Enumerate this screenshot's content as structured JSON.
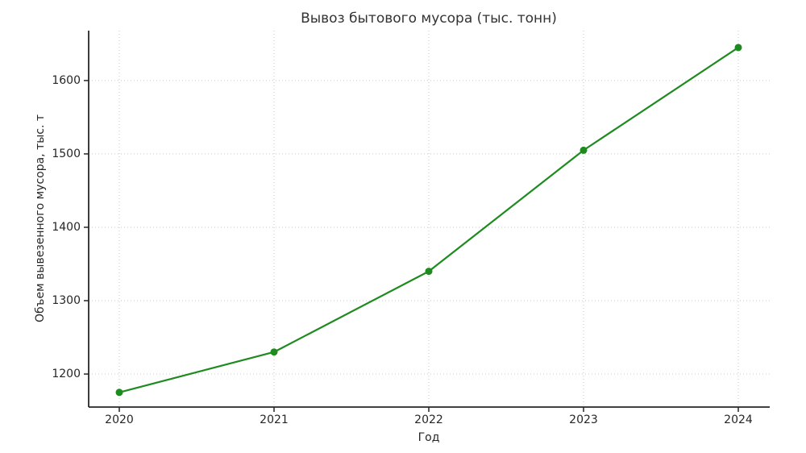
{
  "chart_data": {
    "type": "line",
    "title": "Вывоз бытового мусора (тыс. тонн)",
    "xlabel": "Год",
    "ylabel": "Объем вывезенного мусора, тыс. т",
    "x": [
      2020,
      2021,
      2022,
      2023,
      2024
    ],
    "series": [
      {
        "name": "Вывоз бытового мусора",
        "values": [
          1175,
          1230,
          1340,
          1505,
          1645
        ]
      }
    ],
    "xticks": [
      2020,
      2021,
      2022,
      2023,
      2024
    ],
    "yticks": [
      1200,
      1300,
      1400,
      1500,
      1600
    ],
    "ylim": [
      1155,
      1668
    ],
    "grid": true,
    "grid_style": "dotted",
    "legend_position": "none",
    "marker": "circle"
  },
  "colors": {
    "line": "#1e8b1e",
    "marker": "#1e8b1e",
    "grid": "#c9c9c9",
    "axis": "#262626",
    "tick_text": "#262626",
    "title_text": "#333333",
    "background": "#ffffff"
  }
}
